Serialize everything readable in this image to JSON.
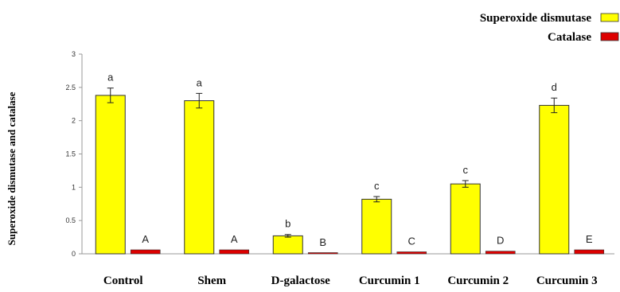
{
  "chart_data": {
    "type": "bar",
    "title": "",
    "xlabel": "",
    "ylabel": "Superoxide dismutase and catalase",
    "ylim": [
      0,
      3
    ],
    "yticks": [
      "0",
      "0.5",
      "1",
      "1.5",
      "2",
      "2.5",
      "3"
    ],
    "grid": false,
    "legend_position": "top-right",
    "categories": [
      "Control",
      "Shem",
      "D-galactose",
      "Curcumin 1",
      "Curcumin 2",
      "Curcumin 3"
    ],
    "series": [
      {
        "name": "Superoxide dismutase",
        "color": "#ffff00",
        "values": [
          2.38,
          2.3,
          0.27,
          0.82,
          1.05,
          2.23
        ],
        "errors": [
          0.11,
          0.11,
          0.02,
          0.04,
          0.05,
          0.11
        ],
        "labels": [
          "a",
          "a",
          "b",
          "c",
          "c",
          "d"
        ]
      },
      {
        "name": "Catalase",
        "color": "#dd0000",
        "values": [
          0.06,
          0.06,
          0.01,
          0.03,
          0.04,
          0.06
        ],
        "errors": [
          0,
          0,
          0,
          0,
          0,
          0
        ],
        "labels": [
          "A",
          "A",
          "B",
          "C",
          "D",
          "E"
        ]
      }
    ]
  }
}
